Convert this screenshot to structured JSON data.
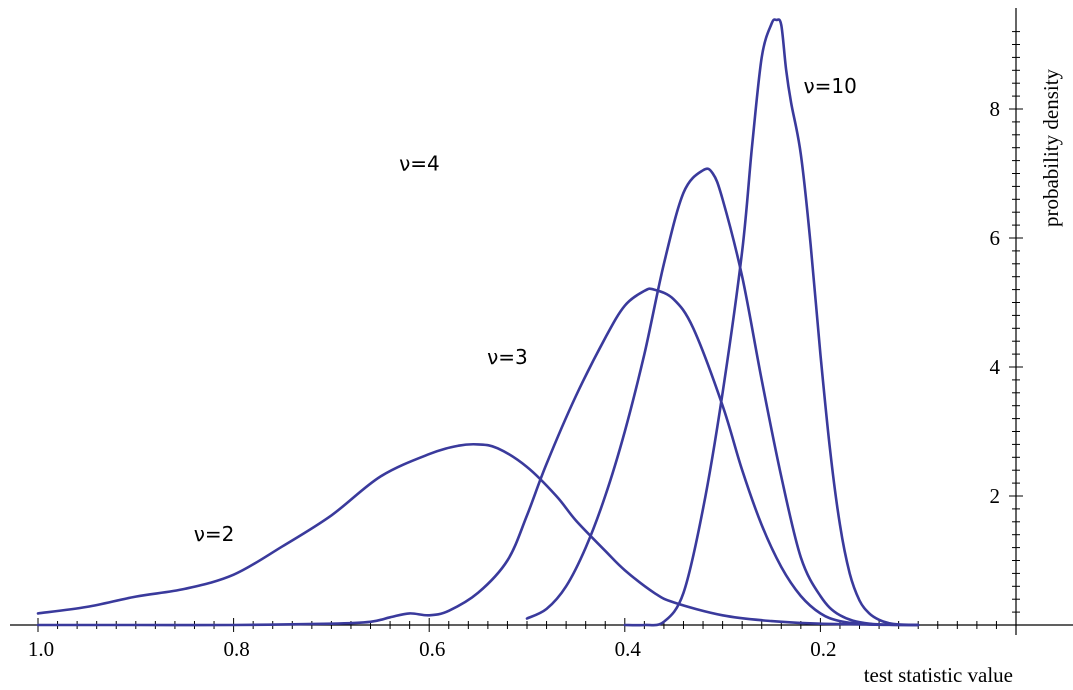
{
  "chart_data": {
    "type": "line",
    "title": "",
    "xlabel": "test statistic  value",
    "ylabel": "probability density",
    "x_axis_reversed": true,
    "xlim": [
      1.0,
      0.0
    ],
    "ylim": [
      0,
      9.3
    ],
    "x_ticks": [
      "1.0",
      "0.8",
      "0.6",
      "0.4",
      "0.2"
    ],
    "x_tick_values": [
      1.0,
      0.8,
      0.6,
      0.4,
      0.2
    ],
    "y_ticks": [
      "2",
      "4",
      "6",
      "8"
    ],
    "y_tick_values": [
      2,
      4,
      6,
      8
    ],
    "y_axis_position": "right",
    "grid": false,
    "line_color": "#3a3a9c",
    "series": [
      {
        "name": "ν=2",
        "label_at": [
          0.82,
          1.3
        ],
        "x": [
          1.0,
          0.95,
          0.9,
          0.85,
          0.8,
          0.75,
          0.7,
          0.65,
          0.6,
          0.57,
          0.55,
          0.53,
          0.5,
          0.47,
          0.45,
          0.42,
          0.4,
          0.37,
          0.35,
          0.3,
          0.25,
          0.2,
          0.15,
          0.1
        ],
        "y": [
          0.18,
          0.28,
          0.44,
          0.56,
          0.78,
          1.22,
          1.7,
          2.3,
          2.65,
          2.78,
          2.8,
          2.74,
          2.45,
          2.0,
          1.62,
          1.15,
          0.85,
          0.5,
          0.35,
          0.15,
          0.06,
          0.02,
          0.01,
          0.0
        ]
      },
      {
        "name": "ν=3",
        "label_at": [
          0.52,
          4.05
        ],
        "x": [
          1.0,
          0.9,
          0.8,
          0.7,
          0.66,
          0.64,
          0.62,
          0.6,
          0.58,
          0.55,
          0.52,
          0.5,
          0.48,
          0.45,
          0.42,
          0.4,
          0.38,
          0.37,
          0.35,
          0.33,
          0.3,
          0.28,
          0.26,
          0.24,
          0.22,
          0.2,
          0.18,
          0.15,
          0.1
        ],
        "y": [
          0.0,
          0.0,
          0.0,
          0.02,
          0.05,
          0.12,
          0.18,
          0.15,
          0.22,
          0.5,
          1.0,
          1.7,
          2.5,
          3.55,
          4.45,
          4.95,
          5.18,
          5.2,
          5.05,
          4.6,
          3.4,
          2.4,
          1.55,
          0.9,
          0.45,
          0.18,
          0.06,
          0.01,
          0.0
        ]
      },
      {
        "name": "ν=4",
        "label_at": [
          0.61,
          7.05
        ],
        "x": [
          0.5,
          0.48,
          0.46,
          0.44,
          0.42,
          0.4,
          0.38,
          0.36,
          0.34,
          0.32,
          0.31,
          0.3,
          0.28,
          0.26,
          0.24,
          0.22,
          0.2,
          0.18,
          0.15,
          0.1
        ],
        "y": [
          0.1,
          0.25,
          0.6,
          1.2,
          2.0,
          3.0,
          4.2,
          5.6,
          6.7,
          7.05,
          7.0,
          6.6,
          5.4,
          3.8,
          2.3,
          1.05,
          0.45,
          0.15,
          0.02,
          0.0
        ]
      },
      {
        "name": "ν=10",
        "label_at": [
          0.19,
          8.25
        ],
        "x": [
          0.4,
          0.38,
          0.36,
          0.34,
          0.32,
          0.3,
          0.28,
          0.27,
          0.26,
          0.25,
          0.245,
          0.24,
          0.235,
          0.23,
          0.22,
          0.21,
          0.2,
          0.19,
          0.18,
          0.17,
          0.16,
          0.15,
          0.14,
          0.13,
          0.12,
          0.1
        ],
        "y": [
          0.0,
          0.0,
          0.05,
          0.5,
          1.8,
          3.6,
          5.8,
          7.4,
          8.8,
          9.32,
          9.38,
          9.3,
          8.6,
          8.1,
          7.3,
          5.9,
          4.2,
          2.7,
          1.55,
          0.8,
          0.38,
          0.18,
          0.08,
          0.03,
          0.01,
          0.0
        ]
      }
    ]
  }
}
